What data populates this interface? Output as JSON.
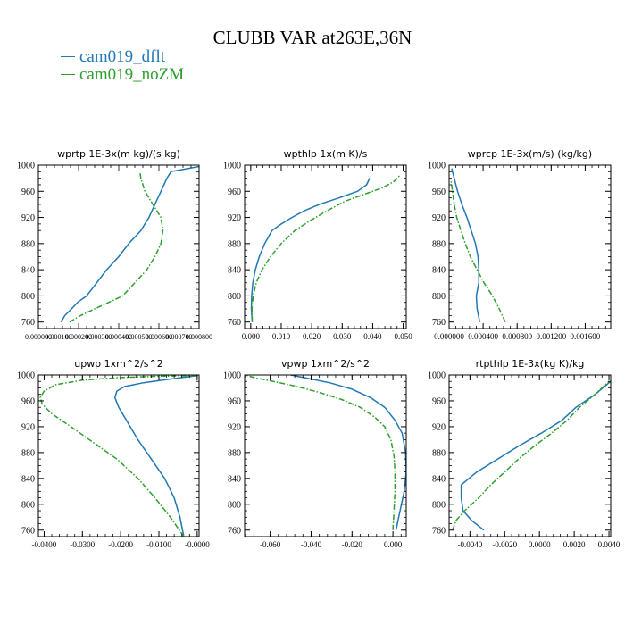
{
  "figure": {
    "title": "CLUBB VAR at263E,36N",
    "legend": [
      {
        "label": "cam019_dflt",
        "color": "#1f77b4"
      },
      {
        "label": "cam019_noZM",
        "color": "#2ca02c"
      }
    ]
  },
  "chart_data": [
    {
      "type": "line",
      "title": "wprtp  1E-3x(m kg)/(s kg)",
      "ylim": [
        1000,
        750
      ],
      "y_ticks": [
        760,
        800,
        840,
        880,
        920,
        960,
        1000
      ],
      "xlim": [
        0.0,
        0.0008
      ],
      "x_tick_labels": [
        "0.000000",
        "0.000100",
        "0.000200",
        "0.000300",
        "0.000400",
        "0.000500",
        "0.000600",
        "0.000700",
        "0.000800"
      ],
      "grid": false,
      "series": [
        {
          "name": "cam019_dflt",
          "color": "#1f77b4",
          "style": "solid",
          "x": [
            0.000112,
            0.000132,
            0.000165,
            0.000195,
            0.00024,
            0.00029,
            0.00034,
            0.0004,
            0.00045,
            0.00051,
            0.00055,
            0.00058,
            0.00061,
            0.00064,
            0.00066,
            0.0008
          ],
          "y": [
            760,
            770,
            780,
            790,
            800,
            820,
            840,
            860,
            880,
            900,
            920,
            940,
            960,
            980,
            990,
            998
          ]
        },
        {
          "name": "cam019_noZM",
          "color": "#2ca02c",
          "style": "dashdot",
          "x": [
            0.000155,
            0.00021,
            0.00028,
            0.00035,
            0.00042,
            0.00048,
            0.00054,
            0.00058,
            0.00061,
            0.00062,
            0.00061,
            0.00057,
            0.00053,
            0.00051,
            0.000505
          ],
          "y": [
            760,
            770,
            780,
            790,
            800,
            820,
            840,
            860,
            880,
            900,
            920,
            940,
            960,
            980,
            990
          ]
        }
      ]
    },
    {
      "type": "line",
      "title": "wpthlp  1x(m K)/s",
      "ylim": [
        1000,
        750
      ],
      "y_ticks": [
        760,
        800,
        840,
        880,
        920,
        960,
        1000
      ],
      "xlim": [
        -0.002,
        0.051
      ],
      "x_ticks": [
        0.0,
        0.01,
        0.02,
        0.03,
        0.04,
        0.05
      ],
      "x_tick_labels": [
        "0.000",
        "0.010",
        "0.020",
        "0.030",
        "0.040",
        "0.050"
      ],
      "grid": false,
      "series": [
        {
          "name": "cam019_dflt",
          "color": "#1f77b4",
          "style": "solid",
          "x": [
            0.0005,
            0.0002,
            0.0003,
            0.0007,
            0.0015,
            0.0028,
            0.0046,
            0.007,
            0.01,
            0.0135,
            0.0175,
            0.0225,
            0.029,
            0.035,
            0.038,
            0.039
          ],
          "y": [
            760,
            780,
            800,
            820,
            840,
            860,
            880,
            900,
            910,
            920,
            930,
            940,
            950,
            960,
            970,
            980
          ]
        },
        {
          "name": "cam019_noZM",
          "color": "#2ca02c",
          "style": "dashdot",
          "x": [
            0.0005,
            0.0004,
            0.0008,
            0.0018,
            0.0037,
            0.0065,
            0.01,
            0.0145,
            0.0195,
            0.025,
            0.031,
            0.037,
            0.043,
            0.047,
            0.049
          ],
          "y": [
            760,
            780,
            800,
            820,
            840,
            860,
            880,
            900,
            915,
            930,
            945,
            955,
            965,
            975,
            985
          ]
        }
      ]
    },
    {
      "type": "line",
      "title": "wprcp  1E-3x(m/s) (kg/kg)",
      "ylim": [
        1000,
        750
      ],
      "y_ticks": [
        760,
        800,
        840,
        880,
        920,
        960,
        1000
      ],
      "xlim": [
        0.0,
        0.0019
      ],
      "x_ticks": [
        0.0,
        0.0004,
        0.0008,
        0.0012,
        0.0016
      ],
      "x_tick_labels": [
        "0.000000",
        "0.000400",
        "0.000800",
        "0.001200",
        "0.001600"
      ],
      "grid": false,
      "series": [
        {
          "name": "cam019_dflt",
          "color": "#1f77b4",
          "style": "solid",
          "x": [
            0.00036,
            0.00033,
            0.00032,
            0.00035,
            0.00035,
            0.00034,
            0.00031,
            0.00026,
            0.00021,
            0.00015,
            0.0001,
            6e-05,
            3e-05
          ],
          "y": [
            760,
            780,
            800,
            820,
            840,
            860,
            880,
            900,
            920,
            940,
            960,
            980,
            995
          ]
        },
        {
          "name": "cam019_noZM",
          "color": "#2ca02c",
          "style": "dashdot",
          "x": [
            0.00066,
            0.00059,
            0.00051,
            0.00041,
            0.00033,
            0.00025,
            0.00019,
            0.00014,
            9e-05,
            6e-05,
            4e-05,
            2e-05
          ],
          "y": [
            760,
            780,
            800,
            820,
            840,
            860,
            880,
            900,
            920,
            940,
            960,
            980
          ]
        }
      ]
    },
    {
      "type": "line",
      "title": "upwp  1xm^2/s^2",
      "ylim": [
        1000,
        750
      ],
      "y_ticks": [
        760,
        800,
        840,
        880,
        920,
        960,
        1000
      ],
      "xlim": [
        -0.0415,
        0.0005
      ],
      "x_ticks": [
        -0.04,
        -0.03,
        -0.02,
        -0.01,
        0.0
      ],
      "x_tick_labels": [
        "-0.0400",
        "-0.0300",
        "-0.0200",
        "-0.0100",
        "-0.0000"
      ],
      "grid": false,
      "series": [
        {
          "name": "cam019_dflt",
          "color": "#1f77b4",
          "style": "solid",
          "x": [
            -0.0035,
            -0.0045,
            -0.006,
            -0.0085,
            -0.012,
            -0.0155,
            -0.0185,
            -0.0205,
            -0.0215,
            -0.021,
            -0.019,
            -0.014,
            -0.009,
            -0.004,
            0.0
          ],
          "y": [
            750,
            780,
            810,
            840,
            870,
            900,
            930,
            950,
            965,
            975,
            982,
            988,
            992,
            996,
            999
          ]
        },
        {
          "name": "cam019_noZM",
          "color": "#2ca02c",
          "style": "dashdot",
          "x": [
            -0.0035,
            -0.007,
            -0.011,
            -0.0155,
            -0.021,
            -0.027,
            -0.033,
            -0.038,
            -0.0405,
            -0.041,
            -0.04,
            -0.037,
            -0.03,
            -0.02,
            -0.01,
            0.0
          ],
          "y": [
            750,
            780,
            810,
            840,
            870,
            895,
            920,
            940,
            955,
            965,
            975,
            985,
            992,
            996,
            998,
            999
          ]
        }
      ]
    },
    {
      "type": "line",
      "title": "vpwp  1xm^2/s^2",
      "ylim": [
        1000,
        750
      ],
      "y_ticks": [
        760,
        800,
        840,
        880,
        920,
        960,
        1000
      ],
      "xlim": [
        -0.0725,
        0.0065
      ],
      "x_ticks": [
        -0.06,
        -0.04,
        -0.02,
        0.0
      ],
      "x_tick_labels": [
        "-0.060",
        "-0.040",
        "-0.020",
        "0.000"
      ],
      "grid": false,
      "series": [
        {
          "name": "cam019_dflt",
          "color": "#1f77b4",
          "style": "solid",
          "x": [
            0.0015,
            0.0035,
            0.0055,
            0.0065,
            0.0062,
            0.0045,
            0.001,
            -0.004,
            -0.011,
            -0.02,
            -0.031,
            -0.042,
            -0.05
          ],
          "y": [
            760,
            790,
            820,
            850,
            880,
            910,
            930,
            950,
            965,
            978,
            988,
            995,
            1000
          ]
        },
        {
          "name": "cam019_noZM",
          "color": "#2ca02c",
          "style": "dashdot",
          "x": [
            0.0,
            0.0005,
            0.001,
            0.001,
            0.0005,
            -0.001,
            -0.004,
            -0.009,
            -0.016,
            -0.025,
            -0.036,
            -0.048,
            -0.06,
            -0.068,
            -0.072
          ],
          "y": [
            760,
            790,
            820,
            850,
            875,
            900,
            920,
            935,
            950,
            962,
            973,
            983,
            991,
            996,
            1000
          ]
        }
      ]
    },
    {
      "type": "line",
      "title": "rtpthlp  1E-3x(kg K)/kg",
      "ylim": [
        1000,
        750
      ],
      "y_ticks": [
        760,
        800,
        840,
        880,
        920,
        960,
        1000
      ],
      "xlim": [
        -0.0052,
        0.0041
      ],
      "x_ticks": [
        -0.004,
        -0.002,
        0.0,
        0.002,
        0.004
      ],
      "x_tick_labels": [
        "-0.0040",
        "-0.0020",
        "0.0000",
        "0.0020",
        "0.0040"
      ],
      "grid": false,
      "series": [
        {
          "name": "cam019_dflt",
          "color": "#1f77b4",
          "style": "solid",
          "x": [
            -0.0032,
            -0.0039,
            -0.0044,
            -0.0045,
            -0.0045,
            -0.0036,
            -0.0024,
            -0.0012,
            0.0001,
            0.0013,
            0.0021,
            0.0032,
            0.0041
          ],
          "y": [
            760,
            775,
            790,
            810,
            830,
            850,
            870,
            890,
            910,
            930,
            950,
            970,
            990
          ]
        },
        {
          "name": "cam019_noZM",
          "color": "#2ca02c",
          "style": "dashdot",
          "x": [
            -0.005,
            -0.0048,
            -0.0043,
            -0.0035,
            -0.0028,
            -0.002,
            -0.0012,
            -0.0003,
            0.0007,
            0.0016,
            0.0023,
            0.0032,
            0.004
          ],
          "y": [
            760,
            775,
            790,
            810,
            830,
            850,
            870,
            890,
            910,
            930,
            950,
            970,
            990
          ]
        }
      ]
    }
  ]
}
